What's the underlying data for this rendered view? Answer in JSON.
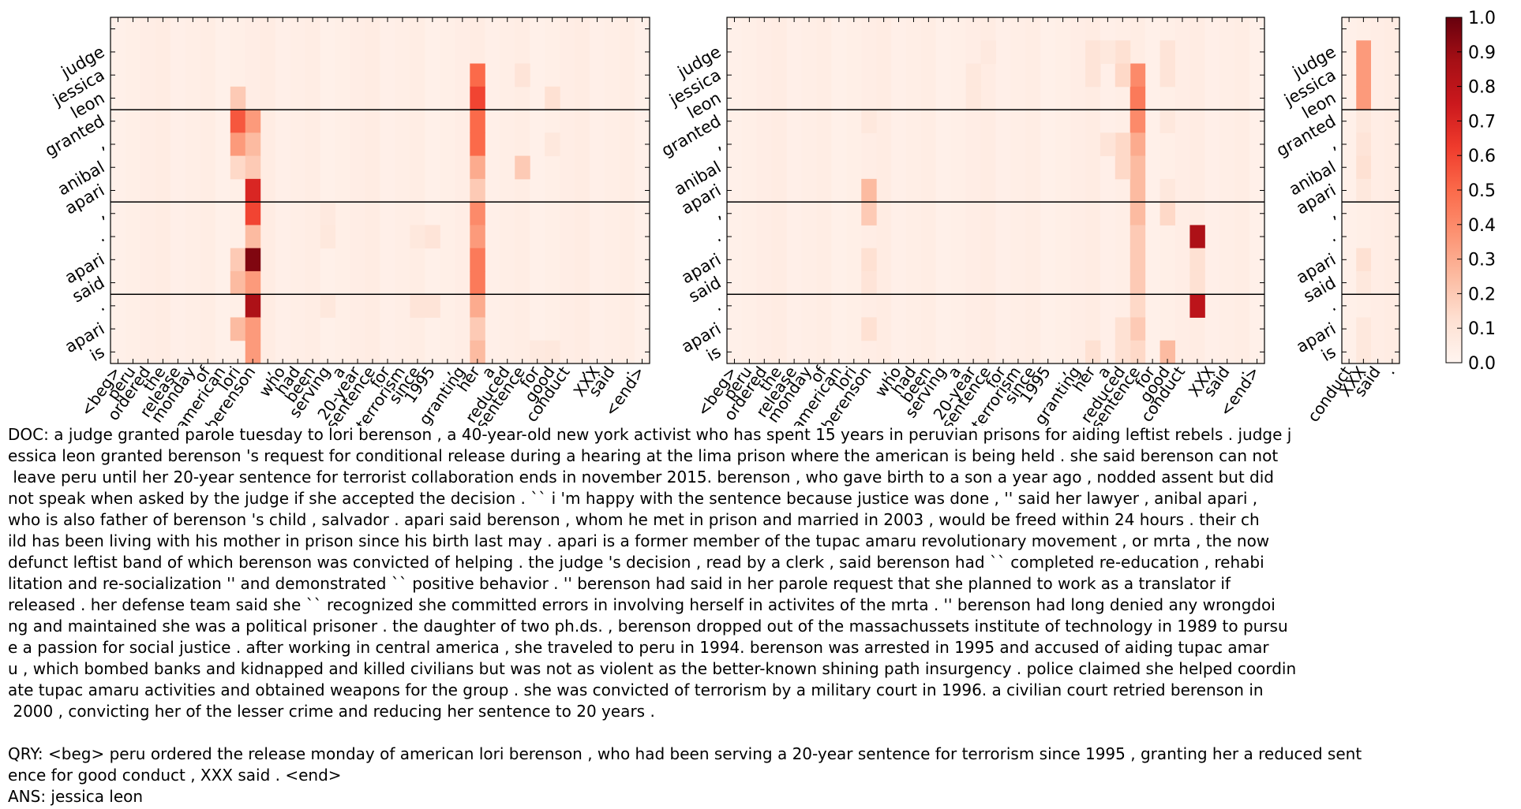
{
  "chart_data": [
    {
      "type": "heatmap",
      "name": "attention-panel-1",
      "y_tick_labels": [
        "",
        "judge",
        "jessica",
        "leon",
        "granted",
        ",",
        "anibal",
        "apari",
        ",",
        ".",
        "apari",
        "said",
        ".",
        "apari",
        "is"
      ],
      "x_tick_labels": [
        "<beg>",
        "peru",
        "ordered",
        "the",
        "release",
        "monday",
        "of",
        "american",
        "lori",
        "berenson",
        ",",
        "who",
        "had",
        "been",
        "serving",
        "a",
        "20-year",
        "sentence",
        "for",
        "terrorism",
        "since",
        "1995",
        ",",
        "granting",
        "her",
        "a",
        "reduced",
        "sentence",
        "for",
        "good",
        "conduct",
        ",",
        "XXX",
        "said",
        ".",
        "<end>"
      ],
      "separators_after_row": [
        3,
        7,
        11
      ],
      "background": 0.03,
      "cells": [
        [
          2,
          24,
          0.5
        ],
        [
          3,
          24,
          0.6
        ],
        [
          4,
          24,
          0.5
        ],
        [
          5,
          24,
          0.5
        ],
        [
          6,
          24,
          0.3
        ],
        [
          7,
          24,
          0.2
        ],
        [
          8,
          24,
          0.4
        ],
        [
          9,
          24,
          0.35
        ],
        [
          10,
          24,
          0.45
        ],
        [
          11,
          24,
          0.45
        ],
        [
          12,
          24,
          0.3
        ],
        [
          13,
          24,
          0.2
        ],
        [
          14,
          24,
          0.25
        ],
        [
          4,
          8,
          0.55
        ],
        [
          5,
          8,
          0.35
        ],
        [
          3,
          8,
          0.2
        ],
        [
          6,
          8,
          0.15
        ],
        [
          10,
          8,
          0.2
        ],
        [
          11,
          8,
          0.25
        ],
        [
          13,
          8,
          0.25
        ],
        [
          4,
          9,
          0.35
        ],
        [
          5,
          9,
          0.25
        ],
        [
          6,
          9,
          0.2
        ],
        [
          7,
          9,
          0.7
        ],
        [
          8,
          9,
          0.6
        ],
        [
          9,
          9,
          0.25
        ],
        [
          10,
          9,
          0.95
        ],
        [
          11,
          9,
          0.35
        ],
        [
          12,
          9,
          0.85
        ],
        [
          13,
          9,
          0.35
        ],
        [
          14,
          9,
          0.35
        ],
        [
          2,
          27,
          0.1
        ],
        [
          3,
          29,
          0.12
        ],
        [
          6,
          27,
          0.2
        ],
        [
          5,
          29,
          0.08
        ],
        [
          14,
          29,
          0.08
        ],
        [
          8,
          14,
          0.07
        ],
        [
          9,
          14,
          0.08
        ],
        [
          12,
          14,
          0.08
        ],
        [
          9,
          20,
          0.08
        ],
        [
          9,
          21,
          0.1
        ],
        [
          12,
          21,
          0.1
        ],
        [
          12,
          20,
          0.1
        ],
        [
          14,
          28,
          0.07
        ]
      ]
    },
    {
      "type": "heatmap",
      "name": "attention-panel-2",
      "y_tick_labels": [
        "",
        "judge",
        "jessica",
        "leon",
        "granted",
        ",",
        "anibal",
        "apari",
        ",",
        ".",
        "apari",
        "said",
        ".",
        "apari",
        "is"
      ],
      "x_tick_labels": [
        "<beg>",
        "peru",
        "ordered",
        "the",
        "release",
        "monday",
        "of",
        "american",
        "lori",
        "berenson",
        ",",
        "who",
        "had",
        "been",
        "serving",
        "a",
        "20-year",
        "sentence",
        "for",
        "terrorism",
        "since",
        "1995",
        ",",
        "granting",
        "her",
        "a",
        "reduced",
        "sentence",
        "for",
        "good",
        "conduct",
        ",",
        "XXX",
        "said",
        ".",
        "<end>"
      ],
      "separators_after_row": [
        3,
        7,
        11
      ],
      "background": 0.03,
      "cells": [
        [
          2,
          27,
          0.4
        ],
        [
          3,
          27,
          0.45
        ],
        [
          4,
          27,
          0.4
        ],
        [
          5,
          27,
          0.3
        ],
        [
          6,
          27,
          0.25
        ],
        [
          7,
          27,
          0.25
        ],
        [
          8,
          27,
          0.25
        ],
        [
          9,
          27,
          0.2
        ],
        [
          10,
          27,
          0.2
        ],
        [
          11,
          27,
          0.2
        ],
        [
          12,
          27,
          0.15
        ],
        [
          13,
          27,
          0.2
        ],
        [
          14,
          27,
          0.15
        ],
        [
          1,
          26,
          0.12
        ],
        [
          2,
          26,
          0.15
        ],
        [
          5,
          26,
          0.15
        ],
        [
          6,
          26,
          0.15
        ],
        [
          13,
          26,
          0.12
        ],
        [
          14,
          26,
          0.12
        ],
        [
          1,
          24,
          0.1
        ],
        [
          2,
          24,
          0.1
        ],
        [
          1,
          25,
          0.08
        ],
        [
          14,
          24,
          0.12
        ],
        [
          5,
          25,
          0.1
        ],
        [
          7,
          9,
          0.25
        ],
        [
          8,
          9,
          0.2
        ],
        [
          10,
          9,
          0.12
        ],
        [
          11,
          9,
          0.1
        ],
        [
          13,
          9,
          0.12
        ],
        [
          4,
          9,
          0.08
        ],
        [
          9,
          31,
          0.85
        ],
        [
          12,
          31,
          0.8
        ],
        [
          10,
          31,
          0.12
        ],
        [
          11,
          31,
          0.12
        ],
        [
          14,
          29,
          0.25
        ],
        [
          8,
          29,
          0.15
        ],
        [
          7,
          29,
          0.08
        ],
        [
          1,
          29,
          0.1
        ],
        [
          2,
          29,
          0.1
        ],
        [
          4,
          29,
          0.08
        ],
        [
          2,
          16,
          0.08
        ],
        [
          3,
          16,
          0.08
        ],
        [
          1,
          17,
          0.07
        ]
      ]
    },
    {
      "type": "heatmap",
      "name": "attention-panel-3",
      "y_tick_labels": [
        "",
        "judge",
        "jessica",
        "leon",
        "granted",
        ",",
        "anibal",
        "apari",
        ",",
        ".",
        "apari",
        "said",
        ".",
        "apari",
        "is"
      ],
      "x_tick_labels": [
        "conduct",
        "XXX",
        "said",
        "."
      ],
      "separators_after_row": [
        3,
        7,
        11
      ],
      "background": 0.03,
      "cells": [
        [
          1,
          1,
          0.35
        ],
        [
          2,
          1,
          0.35
        ],
        [
          3,
          1,
          0.35
        ],
        [
          4,
          1,
          0.08
        ],
        [
          5,
          1,
          0.1
        ],
        [
          6,
          1,
          0.12
        ],
        [
          7,
          1,
          0.08
        ],
        [
          10,
          1,
          0.12
        ],
        [
          11,
          1,
          0.08
        ],
        [
          13,
          1,
          0.08
        ],
        [
          14,
          1,
          0.08
        ]
      ]
    }
  ],
  "colorbar": {
    "tick_labels": [
      "1.0",
      "0.9",
      "0.8",
      "0.7",
      "0.6",
      "0.5",
      "0.4",
      "0.3",
      "0.2",
      "0.1",
      "0.0"
    ],
    "colors": [
      "#fff5f0",
      "#fee0d2",
      "#fcbba1",
      "#fc9272",
      "#fb6a4a",
      "#ef3b2c",
      "#cb181d",
      "#a50f15",
      "#67000d"
    ]
  },
  "text": {
    "doc_lines": [
      "DOC: a judge granted parole tuesday to lori berenson , a 40-year-old new york activist who has spent 15 years in peruvian prisons for aiding leftist rebels . judge j",
      "essica leon granted berenson 's request for conditional release during a hearing at the lima prison where the american is being held . she said berenson can not",
      " leave peru until her 20-year sentence for terrorist collaboration ends in november 2015. berenson , who gave birth to a son a year ago , nodded assent but did",
      "not speak when asked by the judge if she accepted the decision . `` i 'm happy with the sentence because justice was done , '' said her lawyer , anibal apari ,",
      "who is also father of berenson 's child , salvador . apari said berenson , whom he met in prison and married in 2003 , would be freed within 24 hours . their ch",
      "ild has been living with his mother in prison since his birth last may . apari is a former member of the tupac amaru revolutionary movement , or mrta , the now",
      "defunct leftist band of which berenson was convicted of helping . the judge 's decision , read by a clerk , said berenson had `` completed re-education , rehabi",
      "litation and re-socialization '' and demonstrated `` positive behavior . '' berenson had said in her parole request that she planned to work as a translator if",
      "released . her defense team said she `` recognized she committed errors in involving herself in activites of the mrta . '' berenson had long denied any wrongdoi",
      "ng and maintained she was a political prisoner . the daughter of two ph.ds. , berenson dropped out of the massachussets institute of technology in 1989 to pursu",
      "e a passion for social justice . after working in central america , she traveled to peru in 1994. berenson was arrested in 1995 and accused of aiding tupac amar",
      "u , which bombed banks and kidnapped and killed civilians but was not as violent as the better-known shining path insurgency . police claimed she helped coordin",
      "ate tupac amaru activities and obtained weapons for the group . she was convicted of terrorism by a military court in 1996. a civilian court retried berenson in",
      " 2000 , convicting her of the lesser crime and reducing her sentence to 20 years ."
    ],
    "qry_lines": [
      "QRY: <beg> peru ordered the release monday of american lori berenson , who had been serving a 20-year sentence for terrorism since 1995 , granting her a reduced sent",
      "ence for good conduct , XXX said . <end>"
    ],
    "ans_line": "ANS: jessica leon"
  }
}
